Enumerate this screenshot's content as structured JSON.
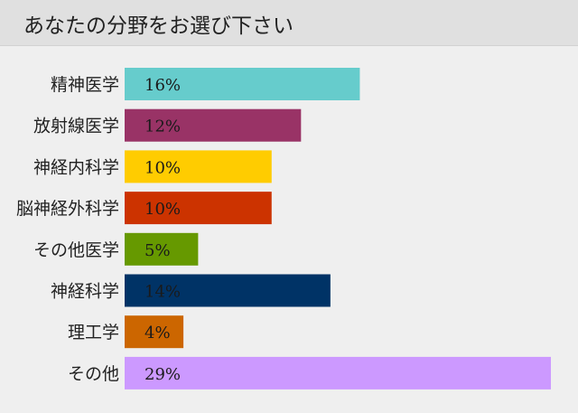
{
  "header": {
    "title": "あなたの分野をお選び下さい"
  },
  "chart_data": {
    "type": "bar",
    "orientation": "horizontal",
    "title": "あなたの分野をお選び下さい",
    "categories": [
      "精神医学",
      "放射線医学",
      "神経内科学",
      "脳神経外科学",
      "その他医学",
      "神経科学",
      "理工学",
      "その他"
    ],
    "values": [
      16,
      12,
      10,
      10,
      5,
      14,
      4,
      29
    ],
    "value_labels": [
      "16%",
      "12%",
      "10%",
      "10%",
      "5%",
      "14%",
      "4%",
      "29%"
    ],
    "colors": [
      "#66cccc",
      "#993366",
      "#ffcc00",
      "#cc3300",
      "#669900",
      "#003366",
      "#cc6600",
      "#cc99ff"
    ],
    "unit": "%",
    "xlim": [
      0,
      29
    ],
    "grid": false,
    "legend": "none"
  }
}
